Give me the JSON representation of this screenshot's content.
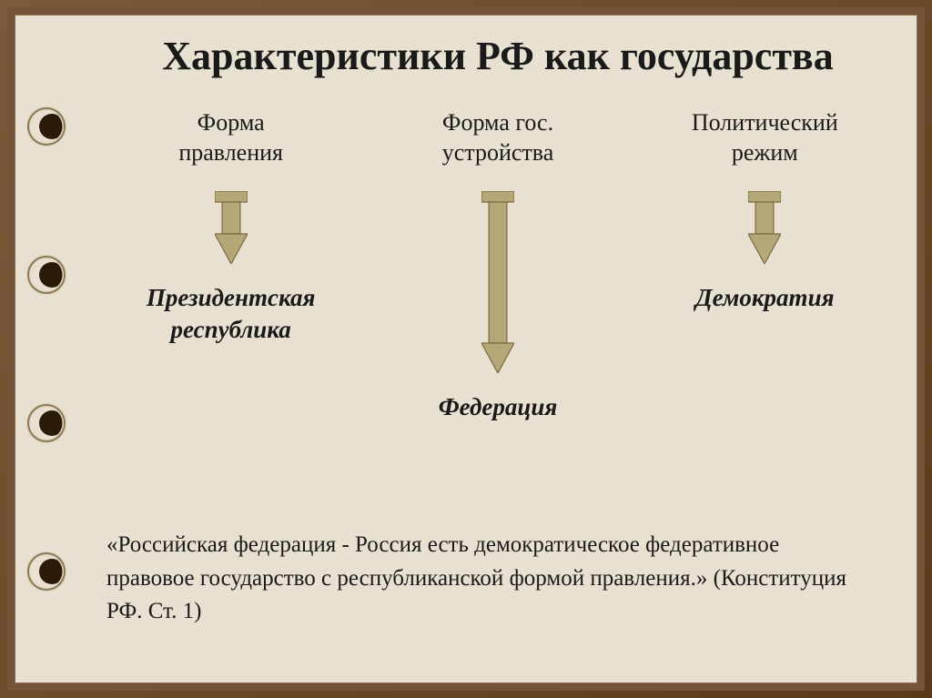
{
  "title": "Характеристики РФ как государства",
  "columns": [
    {
      "header": "Форма\nправления",
      "arrow_height": 80,
      "arrow_shaft_height": 35,
      "result": "Президентская\nреспублика"
    },
    {
      "header": "Форма гос.\nустройства",
      "arrow_height": 200,
      "arrow_shaft_height": 155,
      "result": "Федерация"
    },
    {
      "header": "Политический\nрежим",
      "arrow_height": 80,
      "arrow_shaft_height": 35,
      "result": "Демократия"
    }
  ],
  "quote": "«Российская федерация - Россия есть демократическое федеративное правовое государство с республиканской формой правления.»  (Конституция РФ. Ст. 1)",
  "style": {
    "title_font_size": 44,
    "header_font_size": 26,
    "result_font_size": 27,
    "quote_font_size": 25,
    "background_color": "#e8e0d0",
    "frame_color": "#735438",
    "text_color": "#1a1a1a",
    "arrow_fill": "#b5a878",
    "arrow_stroke": "#7a6840",
    "arrow_width": 36,
    "ring_outer": "#e0d8c0",
    "ring_inner": "#8a7a5a",
    "hole_fill": "#2a1a0a"
  }
}
